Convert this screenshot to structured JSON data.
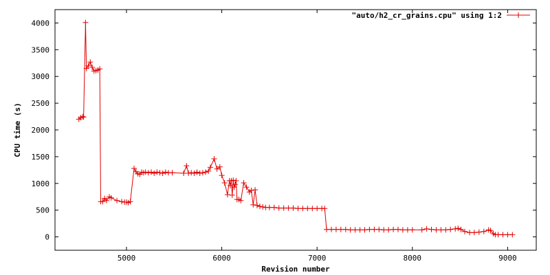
{
  "chart_data": {
    "type": "line",
    "title": "",
    "xlabel": "Revision number",
    "ylabel": "CPU time (s)",
    "xlim": [
      4250,
      9300
    ],
    "ylim": [
      -250,
      4250
    ],
    "xticks": [
      5000,
      6000,
      7000,
      8000,
      9000
    ],
    "yticks": [
      0,
      500,
      1000,
      1500,
      2000,
      2500,
      3000,
      3500,
      4000
    ],
    "grid": false,
    "legend": {
      "position": "top-right"
    },
    "series": [
      {
        "name": "\"auto/h2_cr_grains.cpu\" using 1:2",
        "color": "#e00000",
        "marker": "plus",
        "points": [
          [
            4500,
            2200
          ],
          [
            4520,
            2230
          ],
          [
            4540,
            2250
          ],
          [
            4550,
            2240
          ],
          [
            4570,
            4010
          ],
          [
            4580,
            3150
          ],
          [
            4600,
            3200
          ],
          [
            4620,
            3270
          ],
          [
            4640,
            3170
          ],
          [
            4660,
            3100
          ],
          [
            4680,
            3110
          ],
          [
            4700,
            3120
          ],
          [
            4720,
            3140
          ],
          [
            4730,
            660
          ],
          [
            4750,
            660
          ],
          [
            4770,
            720
          ],
          [
            4790,
            680
          ],
          [
            4820,
            750
          ],
          [
            4840,
            730
          ],
          [
            4900,
            680
          ],
          [
            4950,
            660
          ],
          [
            4980,
            650
          ],
          [
            5000,
            650
          ],
          [
            5020,
            640
          ],
          [
            5040,
            660
          ],
          [
            5080,
            1280
          ],
          [
            5100,
            1220
          ],
          [
            5120,
            1180
          ],
          [
            5140,
            1170
          ],
          [
            5160,
            1210
          ],
          [
            5180,
            1200
          ],
          [
            5200,
            1210
          ],
          [
            5230,
            1200
          ],
          [
            5260,
            1210
          ],
          [
            5290,
            1190
          ],
          [
            5320,
            1210
          ],
          [
            5350,
            1200
          ],
          [
            5380,
            1190
          ],
          [
            5410,
            1210
          ],
          [
            5440,
            1200
          ],
          [
            5480,
            1200
          ],
          [
            5600,
            1190
          ],
          [
            5630,
            1330
          ],
          [
            5650,
            1190
          ],
          [
            5680,
            1200
          ],
          [
            5710,
            1190
          ],
          [
            5740,
            1210
          ],
          [
            5770,
            1190
          ],
          [
            5800,
            1200
          ],
          [
            5830,
            1210
          ],
          [
            5860,
            1230
          ],
          [
            5880,
            1300
          ],
          [
            5920,
            1460
          ],
          [
            5950,
            1270
          ],
          [
            5980,
            1310
          ],
          [
            6000,
            1150
          ],
          [
            6030,
            1010
          ],
          [
            6060,
            790
          ],
          [
            6080,
            1050
          ],
          [
            6090,
            960
          ],
          [
            6100,
            1050
          ],
          [
            6110,
            780
          ],
          [
            6120,
            1060
          ],
          [
            6130,
            930
          ],
          [
            6140,
            980
          ],
          [
            6150,
            1050
          ],
          [
            6160,
            700
          ],
          [
            6180,
            700
          ],
          [
            6200,
            680
          ],
          [
            6230,
            1010
          ],
          [
            6260,
            930
          ],
          [
            6290,
            840
          ],
          [
            6310,
            870
          ],
          [
            6330,
            600
          ],
          [
            6350,
            880
          ],
          [
            6370,
            590
          ],
          [
            6400,
            570
          ],
          [
            6430,
            560
          ],
          [
            6460,
            550
          ],
          [
            6500,
            550
          ],
          [
            6550,
            550
          ],
          [
            6600,
            540
          ],
          [
            6650,
            540
          ],
          [
            6700,
            540
          ],
          [
            6750,
            540
          ],
          [
            6800,
            530
          ],
          [
            6850,
            530
          ],
          [
            6900,
            530
          ],
          [
            6950,
            530
          ],
          [
            7000,
            530
          ],
          [
            7050,
            530
          ],
          [
            7080,
            530
          ],
          [
            7100,
            140
          ],
          [
            7150,
            140
          ],
          [
            7200,
            140
          ],
          [
            7250,
            140
          ],
          [
            7300,
            140
          ],
          [
            7350,
            130
          ],
          [
            7400,
            130
          ],
          [
            7450,
            130
          ],
          [
            7500,
            130
          ],
          [
            7550,
            140
          ],
          [
            7600,
            140
          ],
          [
            7650,
            140
          ],
          [
            7700,
            130
          ],
          [
            7750,
            130
          ],
          [
            7800,
            140
          ],
          [
            7850,
            140
          ],
          [
            7900,
            130
          ],
          [
            7950,
            130
          ],
          [
            8000,
            130
          ],
          [
            8100,
            130
          ],
          [
            8150,
            150
          ],
          [
            8200,
            140
          ],
          [
            8250,
            130
          ],
          [
            8300,
            130
          ],
          [
            8350,
            130
          ],
          [
            8400,
            140
          ],
          [
            8450,
            150
          ],
          [
            8480,
            160
          ],
          [
            8510,
            140
          ],
          [
            8550,
            100
          ],
          [
            8600,
            80
          ],
          [
            8650,
            80
          ],
          [
            8700,
            90
          ],
          [
            8750,
            100
          ],
          [
            8800,
            130
          ],
          [
            8820,
            120
          ],
          [
            8850,
            60
          ],
          [
            8870,
            40
          ],
          [
            8900,
            40
          ],
          [
            8950,
            40
          ],
          [
            9000,
            40
          ],
          [
            9050,
            40
          ]
        ]
      }
    ]
  }
}
